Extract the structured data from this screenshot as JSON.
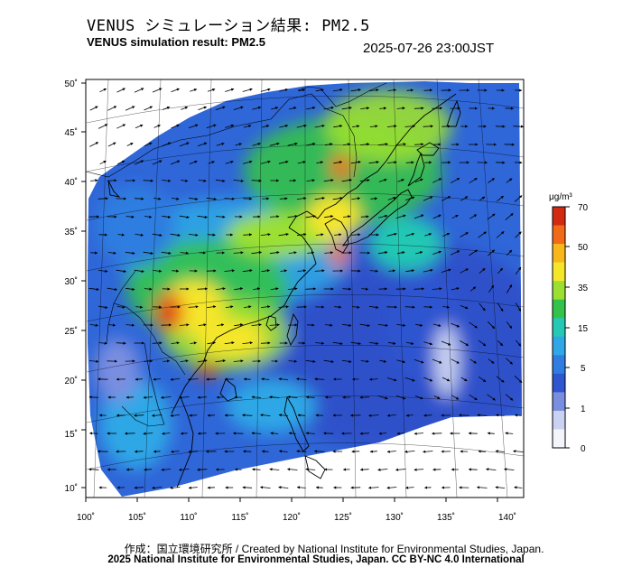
{
  "header": {
    "title_jp": "VENUS シミュレーション結果: PM2.5",
    "title_en": "VENUS simulation result: PM2.5",
    "datetime": "2025-07-26 23:00JST"
  },
  "map": {
    "lon_ticks": [
      "100˚",
      "105˚",
      "110˚",
      "115˚",
      "120˚",
      "125˚",
      "130˚",
      "135˚",
      "140˚"
    ],
    "lat_ticks": [
      "50˚",
      "45˚",
      "40˚",
      "35˚",
      "30˚",
      "25˚",
      "20˚",
      "15˚",
      "10˚"
    ],
    "lon_range": [
      100,
      142
    ],
    "lat_range": [
      9,
      51
    ]
  },
  "colorbar": {
    "unit": "μg/m³",
    "labels": [
      "70",
      "50",
      "35",
      "15",
      "5",
      "1",
      "0"
    ],
    "colors": [
      "#d42a12",
      "#f06a18",
      "#f8b81c",
      "#f5e62a",
      "#9be030",
      "#34c24a",
      "#24c8b4",
      "#2fa7e6",
      "#2f7de0",
      "#2f55d0",
      "#7a8ee0",
      "#c9d2f2",
      "#f4f4fb"
    ]
  },
  "footer": {
    "credit": "作成：国立環境研究所 / Created by National Institute for Environmental Studies, Japan.",
    "copyright": "2025 National Institute for Environmental Studies, Japan. CC BY-NC 4.0 International"
  }
}
